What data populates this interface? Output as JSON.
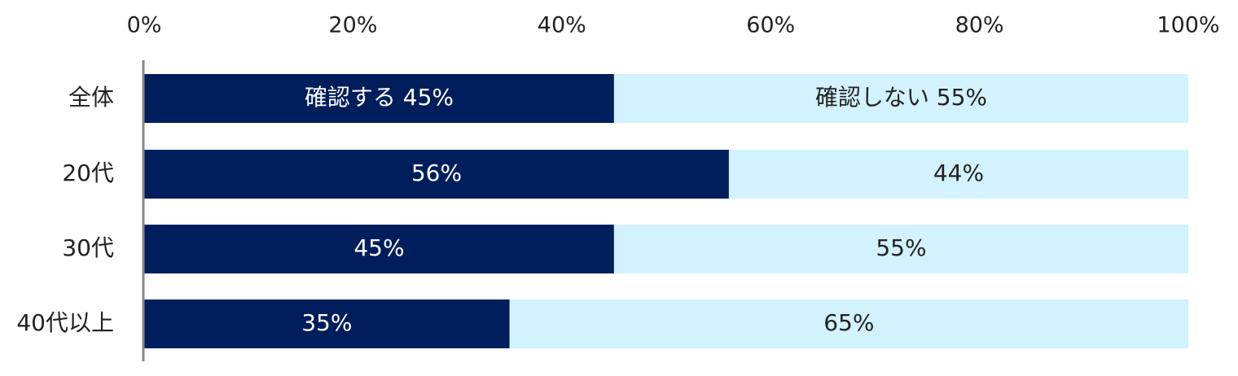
{
  "colors": {
    "confirm": "#001e5c",
    "not_confirm": "#d2f2fd",
    "axis": "#888888",
    "text_dark": "#222222",
    "text_light": "#ffffff"
  },
  "chart_data": {
    "type": "bar",
    "orientation": "horizontal",
    "stacked": "percent",
    "x_ticks": [
      "0%",
      "20%",
      "40%",
      "60%",
      "80%",
      "100%"
    ],
    "xlim": [
      0,
      100
    ],
    "categories": [
      "全体",
      "20代",
      "30代",
      "40代以上"
    ],
    "series": [
      {
        "name": "確認する",
        "values": [
          45,
          56,
          45,
          35
        ],
        "labels": [
          "確認する 45%",
          "56%",
          "45%",
          "35%"
        ]
      },
      {
        "name": "確認しない",
        "values": [
          55,
          44,
          55,
          65
        ],
        "labels": [
          "確認しない 55%",
          "44%",
          "55%",
          "65%"
        ]
      }
    ],
    "grid": false,
    "axis_position": "top"
  }
}
